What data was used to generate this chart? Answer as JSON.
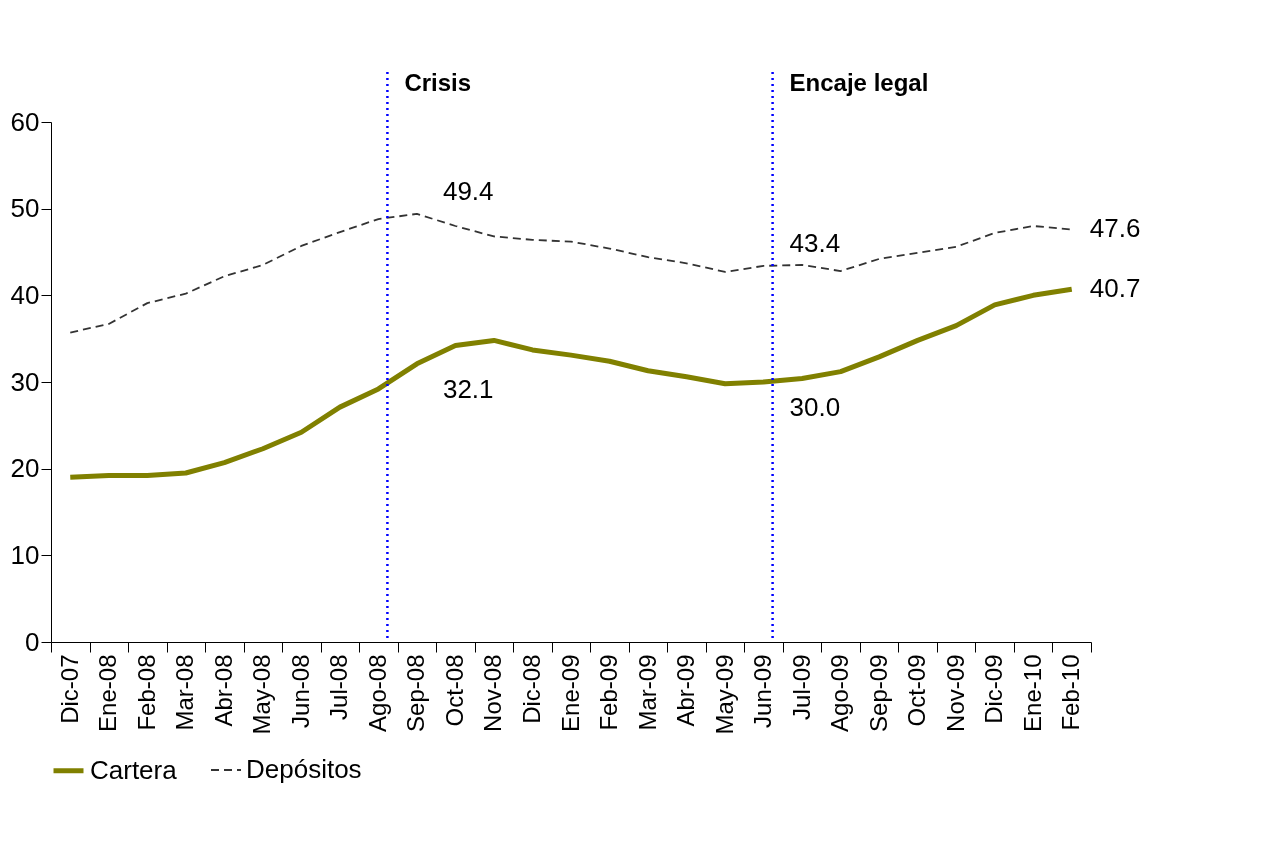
{
  "chart_data": {
    "type": "line",
    "categories": [
      "Dic-07",
      "Ene-08",
      "Feb-08",
      "Mar-08",
      "Abr-08",
      "May-08",
      "Jun-08",
      "Jul-08",
      "Ago-08",
      "Sep-08",
      "Oct-08",
      "Nov-08",
      "Dic-08",
      "Ene-09",
      "Feb-09",
      "Mar-09",
      "Abr-09",
      "May-09",
      "Jun-09",
      "Jul-09",
      "Ago-09",
      "Sep-09",
      "Oct-09",
      "Nov-09",
      "Dic-09",
      "Ene-10",
      "Feb-10"
    ],
    "series": [
      {
        "name": "Cartera",
        "color": "#808000",
        "line_style": "solid",
        "values": [
          19.0,
          19.2,
          19.2,
          19.5,
          20.7,
          22.3,
          24.2,
          27.1,
          29.2,
          32.1,
          34.2,
          34.8,
          33.7,
          33.1,
          32.4,
          31.3,
          30.6,
          29.8,
          30.0,
          30.4,
          31.2,
          32.9,
          34.8,
          36.5,
          38.9,
          40.0,
          40.7
        ],
        "value_labels": [
          null,
          null,
          null,
          null,
          null,
          null,
          null,
          null,
          null,
          "32.1",
          null,
          null,
          null,
          null,
          null,
          null,
          null,
          null,
          "30.0",
          null,
          null,
          null,
          null,
          null,
          null,
          null,
          "40.7"
        ]
      },
      {
        "name": "Depósitos",
        "color": "#333333",
        "line_style": "dashed",
        "values": [
          35.7,
          36.7,
          39.1,
          40.2,
          42.2,
          43.5,
          45.7,
          47.3,
          48.8,
          49.4,
          48.0,
          46.8,
          46.4,
          46.2,
          45.4,
          44.4,
          43.7,
          42.7,
          43.4,
          43.5,
          42.8,
          44.2,
          44.9,
          45.6,
          47.2,
          48.0,
          47.6
        ],
        "value_labels": [
          null,
          null,
          null,
          null,
          null,
          null,
          null,
          null,
          null,
          "49.4",
          null,
          null,
          null,
          null,
          null,
          null,
          null,
          null,
          "43.4",
          null,
          null,
          null,
          null,
          null,
          null,
          null,
          "47.6"
        ]
      }
    ],
    "ylim": [
      0,
      60
    ],
    "yticks": [
      0,
      10,
      20,
      30,
      40,
      50,
      60
    ],
    "ref_lines": [
      {
        "axis": "x",
        "value": "Ago-08",
        "label": "Crisis",
        "color": "#0000ff",
        "line_style": "dotted"
      },
      {
        "axis": "x",
        "value": "Jun-09",
        "label": "Encaje legal",
        "color": "#0000ff",
        "line_style": "dotted"
      }
    ],
    "grid": false,
    "legend": "bottom",
    "marker": "none"
  }
}
